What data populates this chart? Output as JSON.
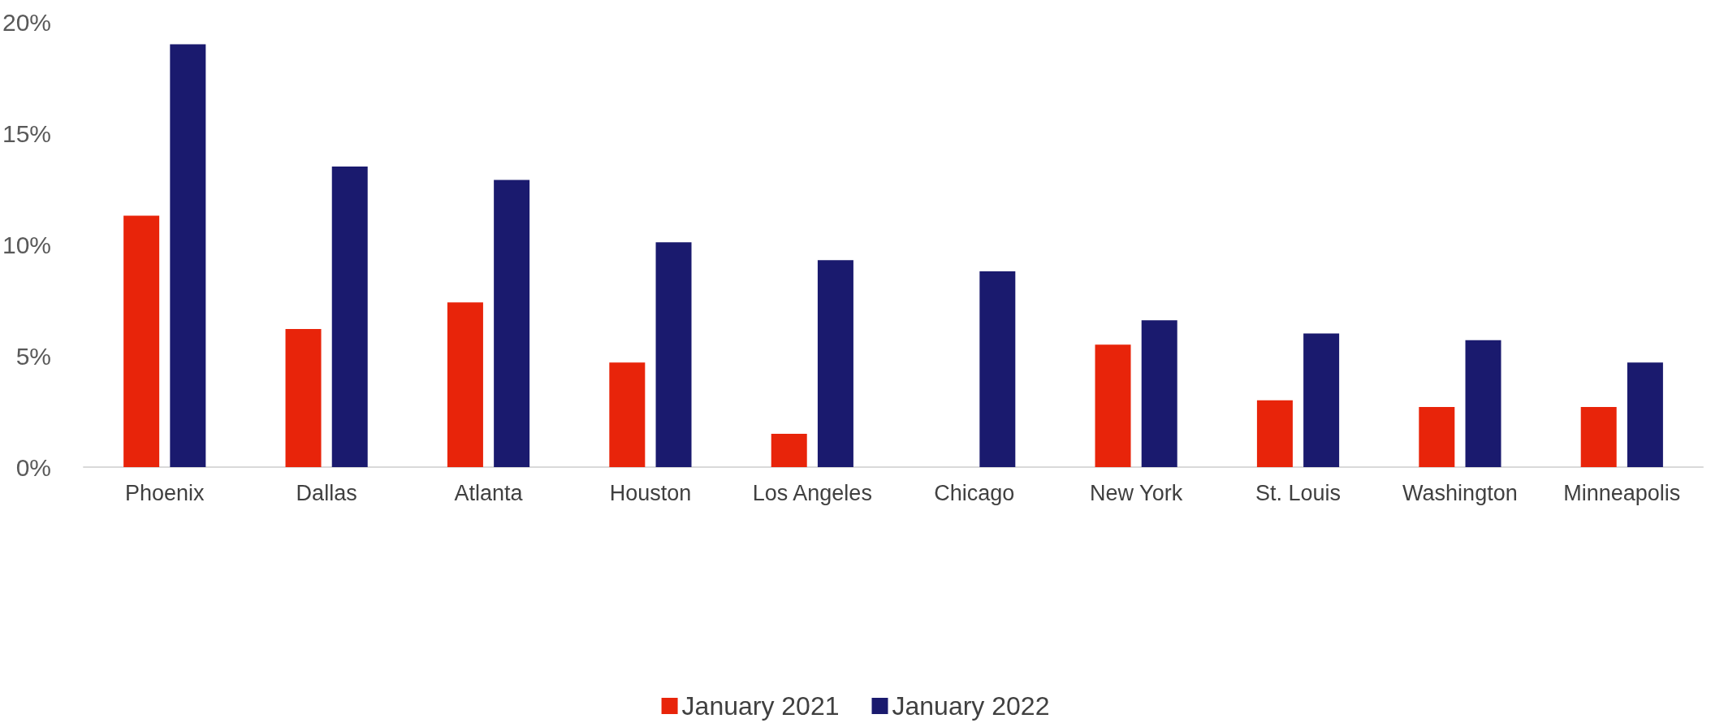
{
  "chart_data": {
    "type": "bar",
    "categories": [
      "Phoenix",
      "Dallas",
      "Atlanta",
      "Houston",
      "Los Angeles",
      "Chicago",
      "New York",
      "St. Louis",
      "Washington",
      "Minneapolis"
    ],
    "series": [
      {
        "name": "January 2021",
        "color": "#e8240a",
        "values": [
          11.3,
          6.2,
          7.4,
          4.7,
          1.5,
          0,
          5.5,
          3.0,
          2.7,
          2.7
        ]
      },
      {
        "name": "January 2022",
        "color": "#1a1a6e",
        "values": [
          19.0,
          13.5,
          12.9,
          10.1,
          9.3,
          8.8,
          6.6,
          6.0,
          5.7,
          4.7
        ]
      }
    ],
    "ylim": [
      0,
      20
    ],
    "yticks": [
      {
        "value": 0,
        "label": "0%"
      },
      {
        "value": 5,
        "label": "5%"
      },
      {
        "value": 10,
        "label": "10%"
      },
      {
        "value": 15,
        "label": "15%"
      },
      {
        "value": 20,
        "label": "20%"
      }
    ],
    "grid": false,
    "legend": "bottom"
  }
}
